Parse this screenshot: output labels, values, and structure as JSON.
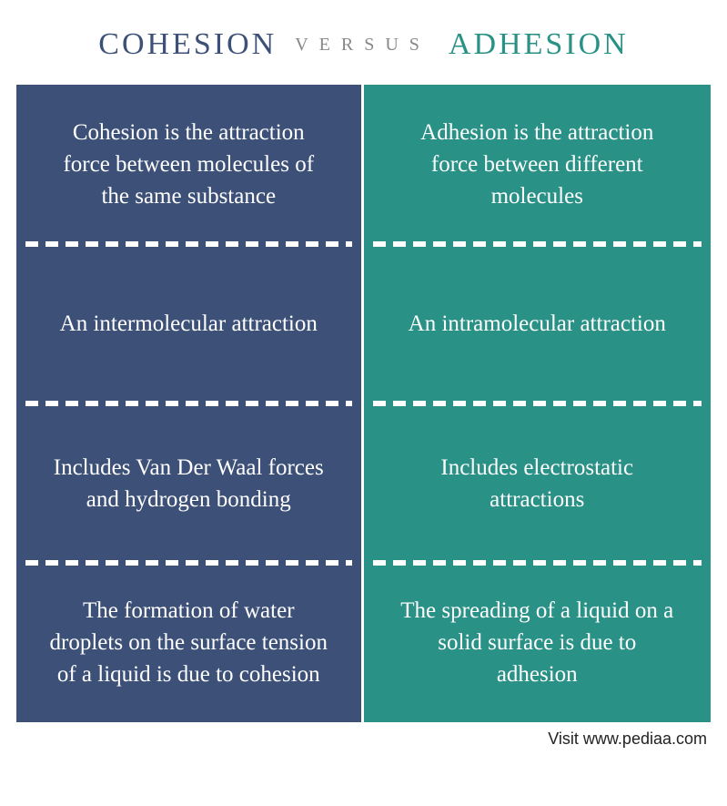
{
  "header": {
    "left_title": "COHESION",
    "versus": "VERSUS",
    "right_title": "ADHESION",
    "left_color": "#3d5178",
    "right_color": "#2a9187",
    "versus_color": "#888888"
  },
  "columns": {
    "left": {
      "bg_color": "#3d5178",
      "cells": [
        "Cohesion is the attraction force between molecules of the same substance",
        "An intermolecular attraction",
        "Includes Van Der Waal forces and hydrogen bonding",
        "The formation of water droplets on the surface tension of a liquid is due to cohesion"
      ]
    },
    "right": {
      "bg_color": "#2a9187",
      "cells": [
        "Adhesion is the attraction force between different molecules",
        "An intramolecular attraction",
        "Includes electrostatic attractions",
        "The spreading of a liquid on a solid surface is due to adhesion"
      ]
    }
  },
  "footer": {
    "text": "Visit www.pediaa.com"
  },
  "style": {
    "cell_text_color": "#ffffff",
    "divider_color": "#ffffff",
    "background": "#ffffff"
  }
}
